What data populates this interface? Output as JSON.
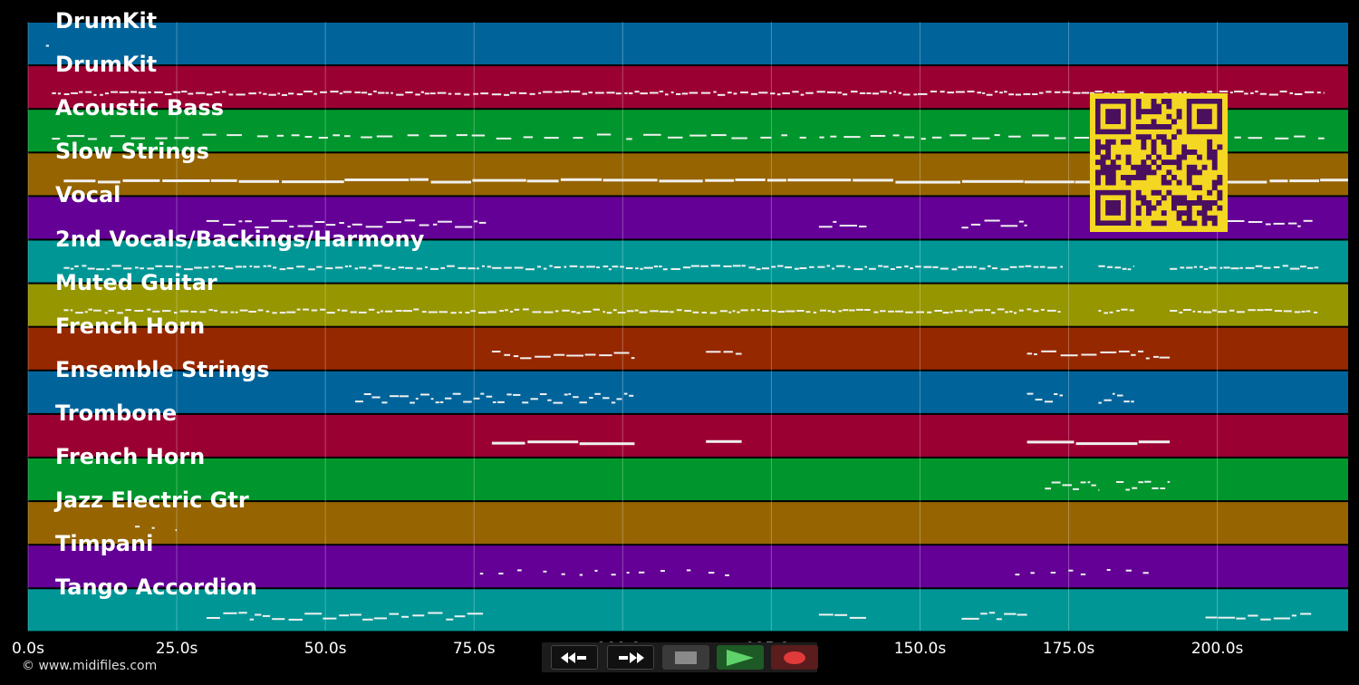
{
  "axis": {
    "max_seconds": 222,
    "ticks": [
      {
        "value": 0,
        "label": "0.0s"
      },
      {
        "value": 25,
        "label": "25.0s"
      },
      {
        "value": 50,
        "label": "50.0s"
      },
      {
        "value": 75,
        "label": "75.0s"
      },
      {
        "value": 100,
        "label": "100.0s"
      },
      {
        "value": 125,
        "label": "125.0s"
      },
      {
        "value": 150,
        "label": "150.0s"
      },
      {
        "value": 175,
        "label": "175.0s"
      },
      {
        "value": 200,
        "label": "200.0s"
      }
    ]
  },
  "tracks": [
    {
      "name": "DrumKit",
      "color": "#00649b",
      "spans": [
        [
          3,
          3.5
        ]
      ],
      "style": "sparse"
    },
    {
      "name": "DrumKit",
      "color": "#9b0032",
      "spans": [
        [
          4,
          218
        ]
      ],
      "style": "dense"
    },
    {
      "name": "Acoustic Bass",
      "color": "#00962d",
      "spans": [
        [
          4,
          218
        ]
      ],
      "style": "bass"
    },
    {
      "name": "Slow Strings",
      "color": "#966400",
      "spans": [
        [
          6,
          222
        ]
      ],
      "style": "long"
    },
    {
      "name": "Vocal",
      "color": "#640096",
      "spans": [
        [
          30,
          77
        ],
        [
          133,
          141
        ],
        [
          157,
          168
        ],
        [
          198,
          216
        ]
      ],
      "style": "melody"
    },
    {
      "name": "2nd Vocals/Backings/Harmony",
      "color": "#009696",
      "spans": [
        [
          6,
          174
        ],
        [
          180,
          186
        ],
        [
          192,
          217
        ]
      ],
      "style": "dense"
    },
    {
      "name": "Muted Guitar",
      "color": "#969600",
      "spans": [
        [
          6,
          174
        ],
        [
          180,
          186
        ],
        [
          192,
          217
        ]
      ],
      "style": "dense"
    },
    {
      "name": "French Horn",
      "color": "#962800",
      "spans": [
        [
          78,
          102
        ],
        [
          114,
          120
        ],
        [
          168,
          192
        ]
      ],
      "style": "melody"
    },
    {
      "name": "Ensemble Strings",
      "color": "#00649b",
      "spans": [
        [
          55,
          102
        ],
        [
          168,
          174
        ],
        [
          180,
          186
        ]
      ],
      "style": "wave"
    },
    {
      "name": "Trombone",
      "color": "#9b0032",
      "spans": [
        [
          78,
          102
        ],
        [
          114,
          120
        ],
        [
          168,
          192
        ]
      ],
      "style": "long"
    },
    {
      "name": "French Horn",
      "color": "#00962d",
      "spans": [
        [
          171,
          180
        ],
        [
          183,
          192
        ]
      ],
      "style": "wave"
    },
    {
      "name": "Jazz Electric Gtr",
      "color": "#966400",
      "spans": [
        [
          18,
          25
        ]
      ],
      "style": "sparse"
    },
    {
      "name": "Timpani",
      "color": "#640096",
      "spans": [
        [
          76,
          120
        ],
        [
          166,
          190
        ]
      ],
      "style": "sparse"
    },
    {
      "name": "Tango Accordion",
      "color": "#009696",
      "spans": [
        [
          30,
          77
        ],
        [
          133,
          141
        ],
        [
          157,
          168
        ],
        [
          198,
          216
        ]
      ],
      "style": "melody"
    }
  ],
  "footer": {
    "copyright": "© www.midifiles.com"
  },
  "transport": {
    "rewind_icon": "rewind-icon",
    "fast_forward_icon": "fast-forward-icon",
    "stop_icon": "stop-icon",
    "play_icon": "play-icon",
    "record_icon": "record-icon",
    "play_color": "#5fd36a",
    "record_color": "#e03a3a"
  },
  "qr": {
    "color_fg": "#4a0f5e",
    "color_bg": "#f4d722"
  }
}
